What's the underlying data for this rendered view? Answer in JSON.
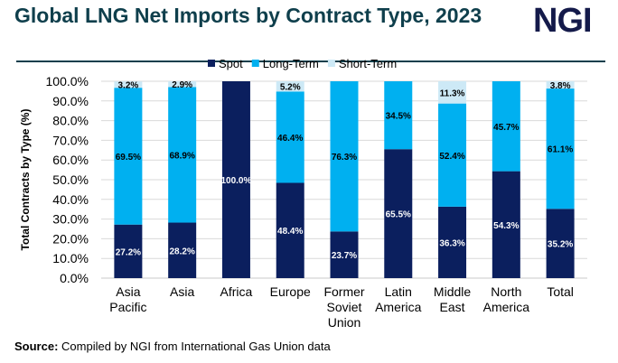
{
  "header": {
    "title": "Global LNG Net Imports by Contract Type, 2023",
    "logo": "NGI"
  },
  "footer": {
    "source_label": "Source:",
    "source_text": " Compiled by NGI from International Gas Union data"
  },
  "colors": {
    "spot": "#0b1f5e",
    "long_term": "#00b0f0",
    "short_term": "#cde9f6",
    "title": "#0f3f4c"
  },
  "chart_data": {
    "type": "bar",
    "stacked": true,
    "ylabel": "Total Contracts by Type (%)",
    "ylim": [
      0,
      100
    ],
    "yticks": [
      "0.0%",
      "10.0%",
      "20.0%",
      "30.0%",
      "40.0%",
      "50.0%",
      "60.0%",
      "70.0%",
      "80.0%",
      "90.0%",
      "100.0%"
    ],
    "grid": true,
    "legend": "top",
    "categories": [
      [
        "Asia",
        "Pacific"
      ],
      [
        "Asia"
      ],
      [
        "Africa"
      ],
      [
        "Europe"
      ],
      [
        "Former",
        "Soviet",
        "Union"
      ],
      [
        "Latin",
        "America"
      ],
      [
        "Middle",
        "East"
      ],
      [
        "North",
        "America"
      ],
      [
        "Total"
      ]
    ],
    "series": [
      {
        "name": "Spot",
        "values": [
          27.2,
          28.2,
          100.0,
          48.4,
          23.7,
          65.5,
          36.3,
          54.3,
          35.2
        ],
        "labels": [
          "27.2%",
          "28.2%",
          "100.0%",
          "48.4%",
          "23.7%",
          "65.5%",
          "36.3%",
          "54.3%",
          "35.2%"
        ]
      },
      {
        "name": "Long-Term",
        "values": [
          69.5,
          68.9,
          0,
          46.4,
          76.3,
          34.5,
          52.4,
          45.7,
          61.1
        ],
        "labels": [
          "69.5%",
          "68.9%",
          "",
          "46.4%",
          "76.3%",
          "34.5%",
          "52.4%",
          "45.7%",
          "61.1%"
        ]
      },
      {
        "name": "Short-Term",
        "values": [
          3.2,
          2.9,
          0,
          5.2,
          0,
          0,
          11.3,
          0,
          3.8
        ],
        "labels": [
          "3.2%",
          "2.9%",
          "",
          "5.2%",
          "",
          "",
          "11.3%",
          "",
          "3.8%"
        ]
      }
    ]
  }
}
